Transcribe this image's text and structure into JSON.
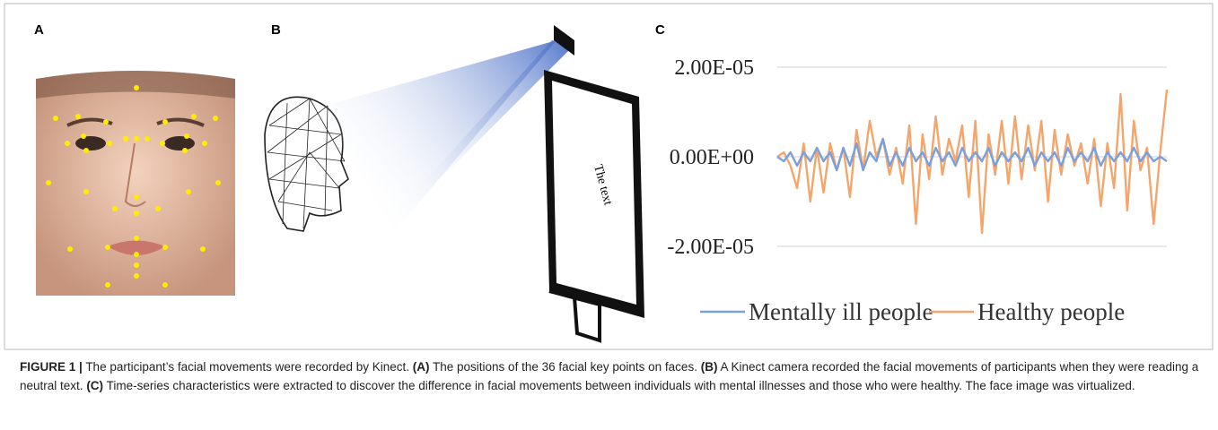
{
  "panels": {
    "a": {
      "label": "A"
    },
    "b": {
      "label": "B",
      "screen_text": "The text"
    },
    "c": {
      "label": "C"
    }
  },
  "chart_data": {
    "type": "line",
    "categories": [
      null,
      null,
      null,
      null,
      null,
      null,
      null,
      null,
      null,
      null,
      null,
      null,
      null,
      null,
      null,
      null,
      null,
      null,
      null,
      null,
      null,
      null,
      null,
      null,
      null,
      null,
      null,
      null,
      null,
      null,
      null,
      null,
      null,
      null,
      null,
      null,
      null,
      null,
      null,
      null,
      null,
      null,
      null,
      null,
      null,
      null,
      null,
      null,
      null,
      null,
      null,
      null,
      null,
      null,
      null,
      null,
      null,
      null,
      null,
      null
    ],
    "ylim": [
      -2e-05,
      2e-05
    ],
    "yticks": [
      {
        "value": -2e-05,
        "label": "-2.00E-05"
      },
      {
        "value": 0,
        "label": "0.00E+00"
      },
      {
        "value": 2e-05,
        "label": "2.00E-05"
      }
    ],
    "grid": true,
    "legend": "bottom",
    "series": [
      {
        "name": "Mentally ill people",
        "color": "#7b9fdc",
        "values": [
          0,
          -1e-06,
          1e-06,
          -2e-06,
          1e-06,
          -1e-06,
          2e-06,
          -1e-06,
          1e-06,
          -3e-06,
          2e-06,
          -2e-06,
          3e-06,
          -3e-06,
          1e-06,
          -1e-06,
          4e-06,
          -2e-06,
          1e-06,
          -2e-06,
          2e-06,
          -1e-06,
          1e-06,
          -2e-06,
          2e-06,
          -1e-06,
          1e-06,
          -2e-06,
          2e-06,
          -1e-06,
          1e-06,
          -1e-06,
          2e-06,
          -2e-06,
          1e-06,
          -1e-06,
          1e-06,
          -1e-06,
          2e-06,
          -2e-06,
          1e-06,
          -1e-06,
          1e-06,
          -2e-06,
          2e-06,
          -1e-06,
          1e-06,
          -1e-06,
          2e-06,
          -2e-06,
          1e-06,
          -1e-06,
          1e-06,
          -1e-06,
          2e-06,
          -1e-06,
          1e-06,
          -1e-06,
          0,
          -1e-06
        ]
      },
      {
        "name": "Healthy people",
        "color": "#f4a56c",
        "values": [
          0,
          1e-06,
          -2e-06,
          -7e-06,
          3e-06,
          -1e-05,
          2e-06,
          -8e-06,
          3e-06,
          -3e-06,
          2e-06,
          -9e-06,
          6e-06,
          -3e-06,
          8e-06,
          0,
          4e-06,
          -4e-06,
          2e-06,
          -6e-06,
          7e-06,
          -1.5e-05,
          5e-06,
          -5e-06,
          9e-06,
          -4e-06,
          4e-06,
          -1e-06,
          7e-06,
          -9e-06,
          8e-06,
          -1.7e-05,
          5e-06,
          -4e-06,
          8e-06,
          -6e-06,
          9e-06,
          -5e-06,
          7e-06,
          -3e-06,
          8e-06,
          -1e-05,
          6e-06,
          -4e-06,
          5e-06,
          -2e-06,
          3e-06,
          -6e-06,
          4e-06,
          -1.1e-05,
          3e-06,
          -7e-06,
          1.4e-05,
          -1.2e-05,
          8e-06,
          -3e-06,
          2e-06,
          -1.5e-05,
          1e-06,
          1.5e-05
        ]
      }
    ]
  },
  "caption": {
    "figure_label": "FIGURE 1 |",
    "text": "The participant’s facial movements were recorded by Kinect.",
    "items": [
      {
        "label": "(A)",
        "text": "The positions of the 36 facial key points on faces."
      },
      {
        "label": "(B)",
        "text": "A Kinect camera recorded the facial movements of participants when they were reading a neutral text."
      },
      {
        "label": "(C)",
        "text": "Time-series characteristics were extracted to discover the difference in facial movements between individuals with mental illnesses and those who were healthy."
      }
    ],
    "closing": "The face image was virtualized."
  }
}
